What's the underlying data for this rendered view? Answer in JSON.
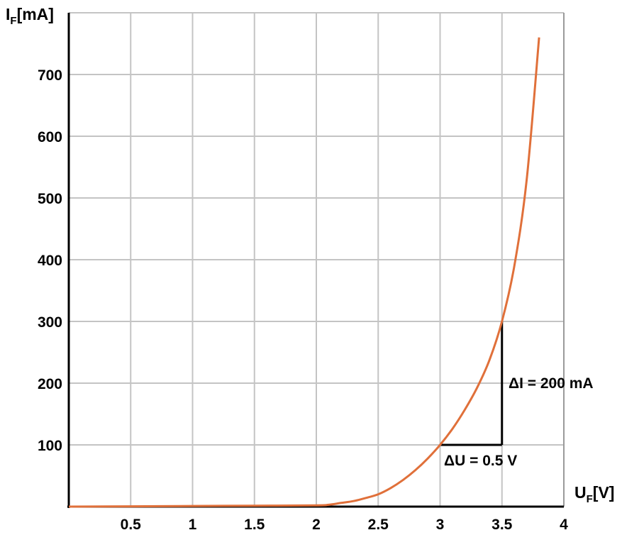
{
  "chart_data": {
    "type": "line",
    "title": "",
    "xlabel": {
      "main": "U",
      "sub": "F",
      "unit": "[V]"
    },
    "ylabel": {
      "main": "I",
      "sub": "F",
      "unit": "[mA]"
    },
    "xlim": [
      0,
      4
    ],
    "ylim": [
      0,
      800
    ],
    "grid": true,
    "x_ticks": [
      0.5,
      1,
      1.5,
      2,
      2.5,
      3,
      3.5,
      4
    ],
    "x_tick_labels": [
      "0.5",
      "1",
      "1.5",
      "2",
      "2.5",
      "3",
      "3.5",
      "4"
    ],
    "y_ticks": [
      100,
      200,
      300,
      400,
      500,
      600,
      700
    ],
    "y_tick_labels": [
      "100",
      "200",
      "300",
      "400",
      "500",
      "600",
      "700"
    ],
    "series": [
      {
        "color": "#e0703a",
        "x": [
          0,
          0.5,
          1,
          1.5,
          2,
          2.1,
          2.2,
          2.3,
          2.4,
          2.5,
          2.6,
          2.7,
          2.8,
          2.9,
          3,
          3.1,
          3.2,
          3.3,
          3.4,
          3.5,
          3.6,
          3.7,
          3.8
        ],
        "y": [
          0,
          0.5,
          1,
          1.5,
          2,
          3,
          6,
          9,
          14,
          20,
          30,
          43,
          59,
          78,
          100,
          126,
          157,
          193,
          238,
          300,
          390,
          530,
          760
        ]
      }
    ],
    "annotations": [
      {
        "text": "ΔI = 200 mA",
        "kind": "delta-current",
        "x": 3.5,
        "y_from": 100,
        "y_to": 300
      },
      {
        "text": "ΔU = 0.5 V",
        "kind": "delta-voltage",
        "x_from": 3,
        "x_to": 3.5,
        "y": 100
      }
    ]
  }
}
